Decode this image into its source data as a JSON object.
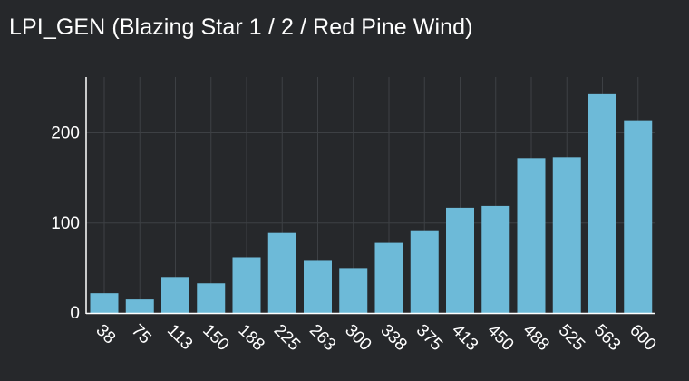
{
  "chart_data": {
    "type": "bar",
    "title": "LPI_GEN (Blazing Star 1 / 2 / Red Pine Wind)",
    "xlabel": "",
    "ylabel": "",
    "categories": [
      "38",
      "75",
      "113",
      "150",
      "188",
      "225",
      "263",
      "300",
      "338",
      "375",
      "413",
      "450",
      "488",
      "525",
      "563",
      "600"
    ],
    "values": [
      22,
      15,
      40,
      33,
      62,
      89,
      58,
      50,
      78,
      91,
      117,
      119,
      172,
      173,
      243,
      214
    ],
    "ylim": [
      0,
      262
    ],
    "yticks": [
      0,
      100,
      200
    ],
    "ytick_labels": [
      "0",
      "100",
      "200"
    ],
    "grid": true,
    "legend": "none",
    "colors": {
      "background": "#26282b",
      "bar": "#6dbad8",
      "grid": "#3d4044",
      "axis": "#ffffff",
      "text": "#ffffff"
    }
  }
}
